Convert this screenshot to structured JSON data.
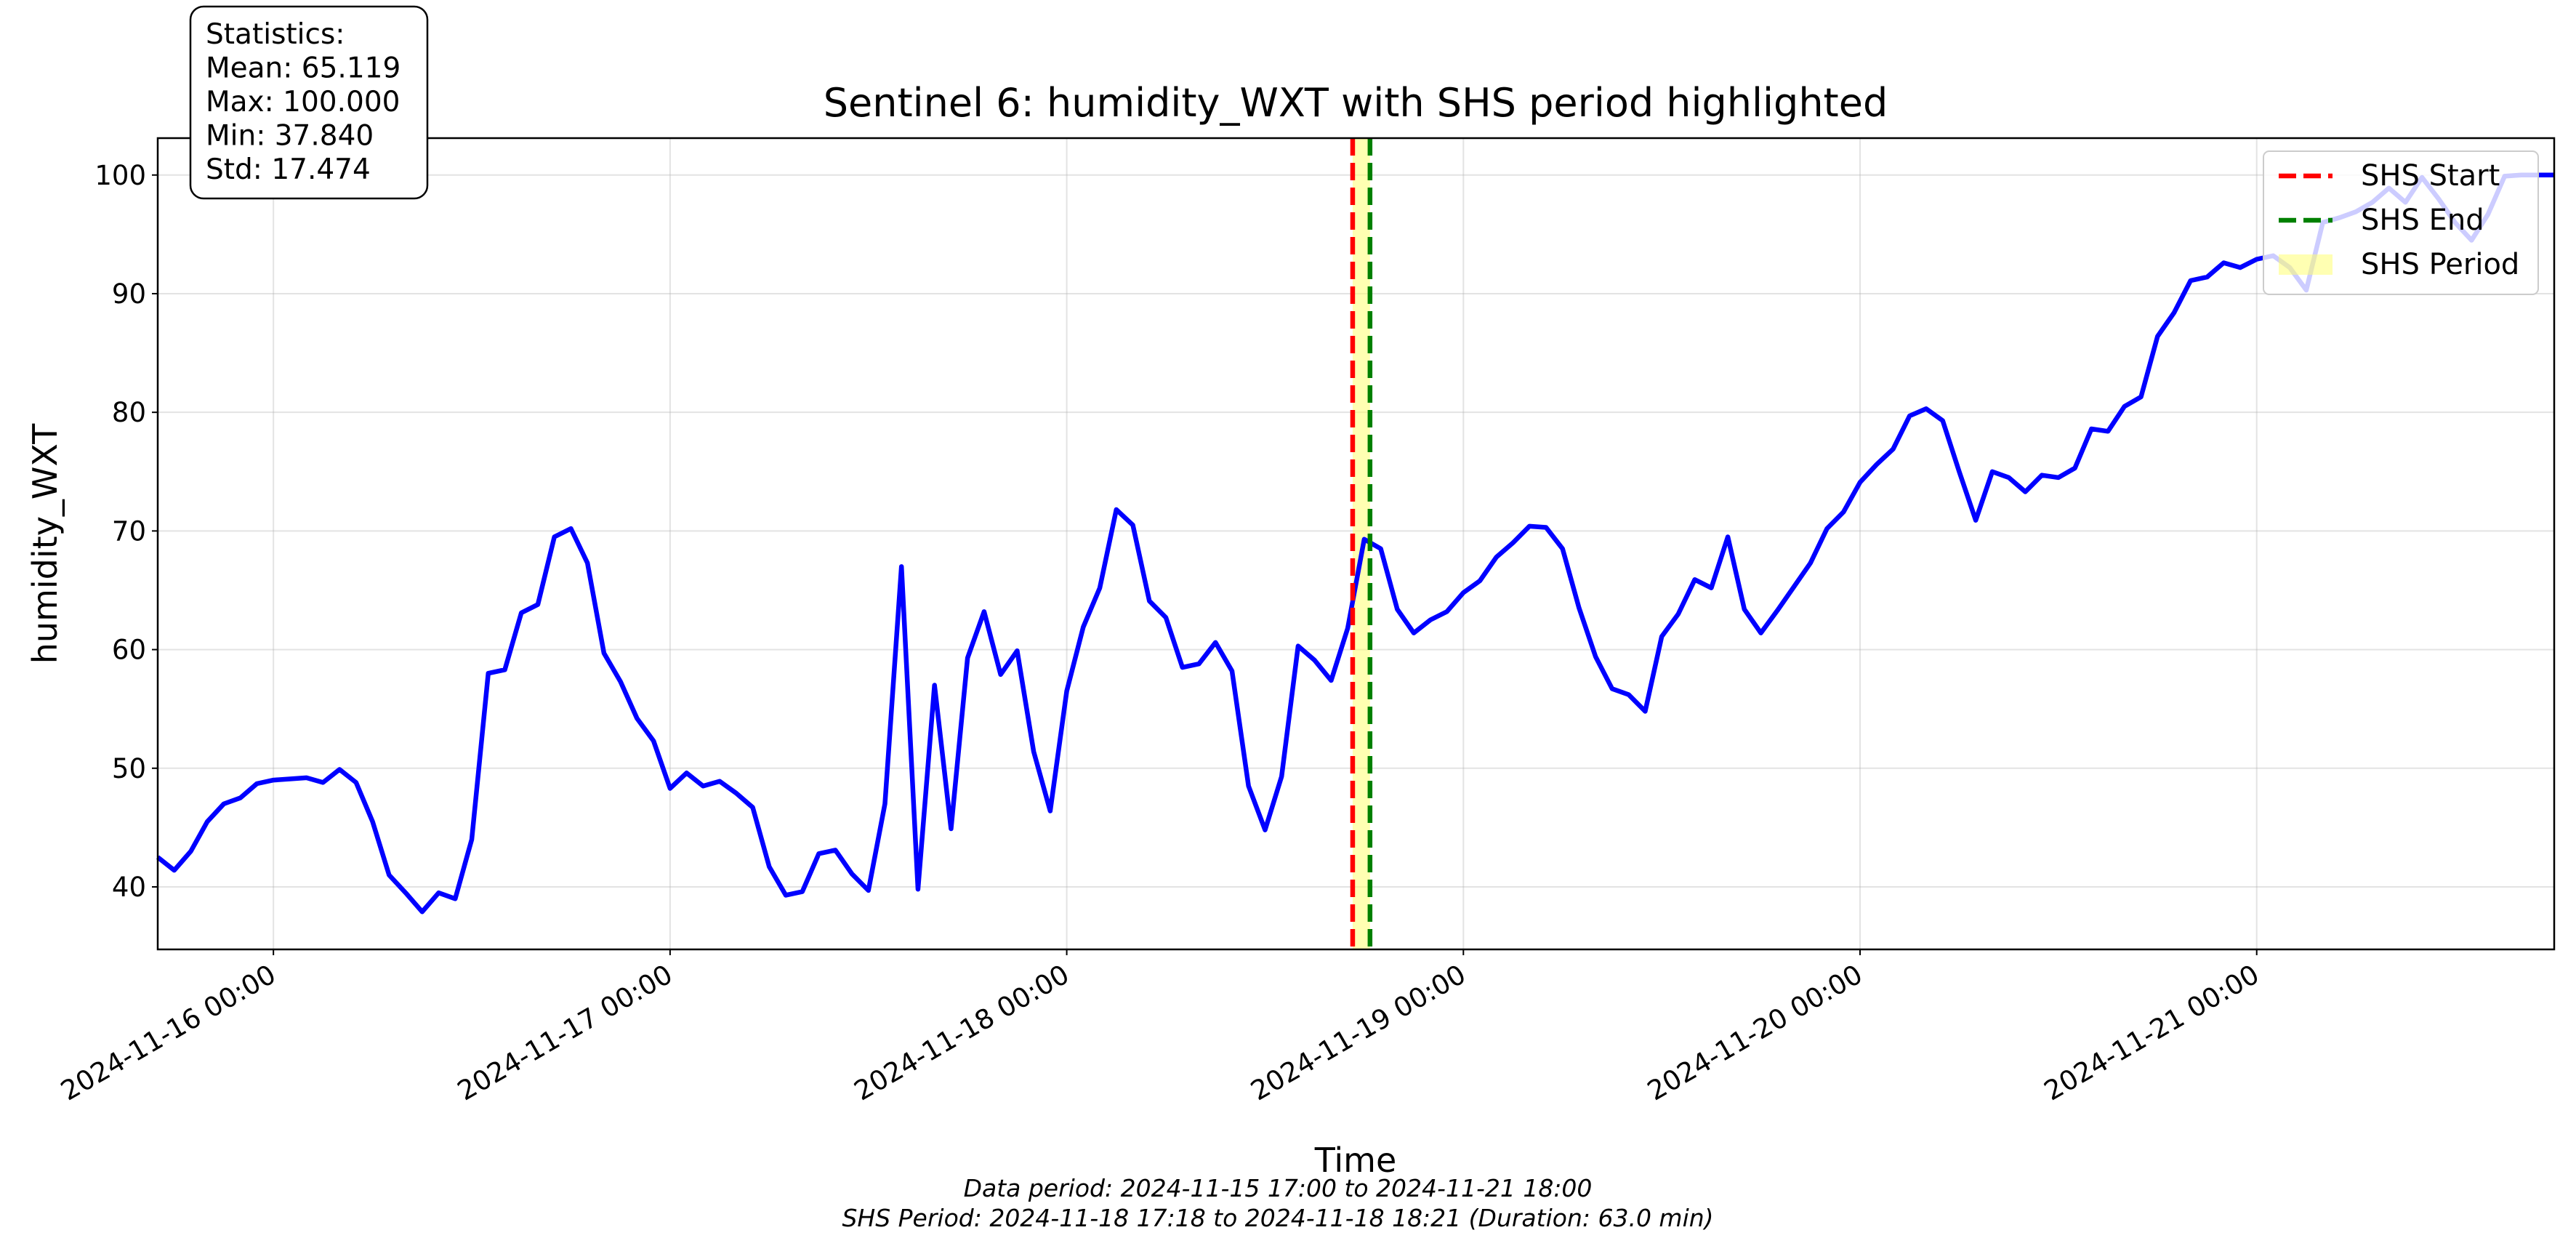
{
  "chart_data": {
    "type": "line",
    "title": "Sentinel 6: humidity_WXT with SHS period highlighted",
    "xlabel": "Time",
    "ylabel": "humidity_WXT",
    "color": "#0000ff",
    "grid": true,
    "legend": "upper right",
    "x": [
      "2024-11-15 17:00",
      "2024-11-15 18:00",
      "2024-11-15 19:00",
      "2024-11-15 20:00",
      "2024-11-15 21:00",
      "2024-11-15 22:00",
      "2024-11-15 23:00",
      "2024-11-16 00:00",
      "2024-11-16 01:00",
      "2024-11-16 02:00",
      "2024-11-16 03:00",
      "2024-11-16 04:00",
      "2024-11-16 05:00",
      "2024-11-16 06:00",
      "2024-11-16 07:00",
      "2024-11-16 08:00",
      "2024-11-16 09:00",
      "2024-11-16 10:00",
      "2024-11-16 11:00",
      "2024-11-16 12:00",
      "2024-11-16 13:00",
      "2024-11-16 14:00",
      "2024-11-16 15:00",
      "2024-11-16 16:00",
      "2024-11-16 17:00",
      "2024-11-16 18:00",
      "2024-11-16 19:00",
      "2024-11-16 20:00",
      "2024-11-16 21:00",
      "2024-11-16 22:00",
      "2024-11-16 23:00",
      "2024-11-17 00:00",
      "2024-11-17 01:00",
      "2024-11-17 02:00",
      "2024-11-17 03:00",
      "2024-11-17 04:00",
      "2024-11-17 05:00",
      "2024-11-17 06:00",
      "2024-11-17 07:00",
      "2024-11-17 08:00",
      "2024-11-17 09:00",
      "2024-11-17 10:00",
      "2024-11-17 11:00",
      "2024-11-17 12:00",
      "2024-11-17 13:00",
      "2024-11-17 14:00",
      "2024-11-17 15:00",
      "2024-11-17 16:00",
      "2024-11-17 17:00",
      "2024-11-17 18:00",
      "2024-11-17 19:00",
      "2024-11-17 20:00",
      "2024-11-17 21:00",
      "2024-11-17 22:00",
      "2024-11-17 23:00",
      "2024-11-18 00:00",
      "2024-11-18 01:00",
      "2024-11-18 02:00",
      "2024-11-18 03:00",
      "2024-11-18 04:00",
      "2024-11-18 05:00",
      "2024-11-18 06:00",
      "2024-11-18 07:00",
      "2024-11-18 08:00",
      "2024-11-18 09:00",
      "2024-11-18 10:00",
      "2024-11-18 11:00",
      "2024-11-18 12:00",
      "2024-11-18 13:00",
      "2024-11-18 14:00",
      "2024-11-18 15:00",
      "2024-11-18 16:00",
      "2024-11-18 17:00",
      "2024-11-18 18:00",
      "2024-11-18 19:00",
      "2024-11-18 20:00",
      "2024-11-18 21:00",
      "2024-11-18 22:00",
      "2024-11-18 23:00",
      "2024-11-19 00:00",
      "2024-11-19 01:00",
      "2024-11-19 02:00",
      "2024-11-19 03:00",
      "2024-11-19 04:00",
      "2024-11-19 05:00",
      "2024-11-19 06:00",
      "2024-11-19 07:00",
      "2024-11-19 08:00",
      "2024-11-19 09:00",
      "2024-11-19 10:00",
      "2024-11-19 11:00",
      "2024-11-19 12:00",
      "2024-11-19 13:00",
      "2024-11-19 14:00",
      "2024-11-19 15:00",
      "2024-11-19 16:00",
      "2024-11-19 17:00",
      "2024-11-19 18:00",
      "2024-11-19 19:00",
      "2024-11-19 20:00",
      "2024-11-19 21:00",
      "2024-11-19 22:00",
      "2024-11-19 23:00",
      "2024-11-20 00:00",
      "2024-11-20 01:00",
      "2024-11-20 02:00",
      "2024-11-20 03:00",
      "2024-11-20 04:00",
      "2024-11-20 05:00",
      "2024-11-20 06:00",
      "2024-11-20 07:00",
      "2024-11-20 08:00",
      "2024-11-20 09:00",
      "2024-11-20 10:00",
      "2024-11-20 11:00",
      "2024-11-20 12:00",
      "2024-11-20 13:00",
      "2024-11-20 14:00",
      "2024-11-20 15:00",
      "2024-11-20 16:00",
      "2024-11-20 17:00",
      "2024-11-20 18:00",
      "2024-11-20 19:00",
      "2024-11-20 20:00",
      "2024-11-20 21:00",
      "2024-11-20 22:00",
      "2024-11-20 23:00",
      "2024-11-21 00:00",
      "2024-11-21 01:00",
      "2024-11-21 02:00",
      "2024-11-21 03:00",
      "2024-11-21 04:00",
      "2024-11-21 05:00",
      "2024-11-21 06:00",
      "2024-11-21 07:00",
      "2024-11-21 08:00",
      "2024-11-21 09:00",
      "2024-11-21 10:00",
      "2024-11-21 11:00",
      "2024-11-21 12:00",
      "2024-11-21 13:00",
      "2024-11-21 14:00",
      "2024-11-21 15:00",
      "2024-11-21 16:00",
      "2024-11-21 17:00",
      "2024-11-21 18:00"
    ],
    "values": [
      42.5,
      41.4,
      43.0,
      45.5,
      47.0,
      47.5,
      48.7,
      49.0,
      49.1,
      49.2,
      48.8,
      49.9,
      48.8,
      45.5,
      41.0,
      39.5,
      37.9,
      39.5,
      39.0,
      44.0,
      58.0,
      58.3,
      63.1,
      63.8,
      69.5,
      70.2,
      67.3,
      59.7,
      57.3,
      54.2,
      52.3,
      48.3,
      49.6,
      48.5,
      48.9,
      47.9,
      46.7,
      41.7,
      39.3,
      39.6,
      42.8,
      43.1,
      41.1,
      39.7,
      47.0,
      67.0,
      39.8,
      57.0,
      44.9,
      59.3,
      63.2,
      57.9,
      59.9,
      51.4,
      46.4,
      56.5,
      61.9,
      65.2,
      71.8,
      70.5,
      64.1,
      62.7,
      58.5,
      58.8,
      60.6,
      58.2,
      48.5,
      44.8,
      49.3,
      60.3,
      59.1,
      57.4,
      61.8,
      69.3,
      68.5,
      63.4,
      61.4,
      62.5,
      63.2,
      64.8,
      65.8,
      67.8,
      69.0,
      70.4,
      70.3,
      68.5,
      63.5,
      59.4,
      56.7,
      56.2,
      54.8,
      61.1,
      63.0,
      65.9,
      65.2,
      69.5,
      63.4,
      61.4,
      63.3,
      65.3,
      67.3,
      70.2,
      71.6,
      74.1,
      75.6,
      76.9,
      79.7,
      80.3,
      79.3,
      75.0,
      70.9,
      75.0,
      74.5,
      73.3,
      74.7,
      74.5,
      75.3,
      78.6,
      78.4,
      80.5,
      81.3,
      86.4,
      88.4,
      91.1,
      91.4,
      92.6,
      92.2,
      92.9,
      93.2,
      92.2,
      90.3,
      96.0,
      96.4,
      96.9,
      97.7,
      98.9,
      97.7,
      99.8,
      98.0,
      96.0,
      94.5,
      96.7,
      99.9,
      100,
      100,
      100
    ],
    "xlim": [
      "2024-11-15 17:00",
      "2024-11-21 18:00"
    ],
    "xticks": [
      "2024-11-16 00:00",
      "2024-11-17 00:00",
      "2024-11-18 00:00",
      "2024-11-19 00:00",
      "2024-11-20 00:00",
      "2024-11-21 00:00"
    ],
    "ylim": [
      34.73,
      103.11
    ],
    "yticks": [
      40,
      50,
      60,
      70,
      80,
      90,
      100
    ],
    "vlines": [
      {
        "name": "SHS Start",
        "x": "2024-11-18 17:18",
        "color": "#ff0000"
      },
      {
        "name": "SHS End",
        "x": "2024-11-18 18:21",
        "color": "#008000"
      }
    ],
    "span": {
      "name": "SHS Period",
      "x": [
        "2024-11-18 17:18",
        "2024-11-18 18:21"
      ],
      "color": "#ffff66"
    },
    "stats_box": [
      "Statistics:",
      "Mean: 65.119",
      "Max: 100.000",
      "Min: 37.840",
      "Std: 17.474"
    ],
    "footnotes": [
      "Data period: 2024-11-15 17:00 to 2024-11-21 18:00",
      "SHS Period: 2024-11-18 17:18 to 2024-11-18 18:21 (Duration: 63.0 min)"
    ]
  }
}
